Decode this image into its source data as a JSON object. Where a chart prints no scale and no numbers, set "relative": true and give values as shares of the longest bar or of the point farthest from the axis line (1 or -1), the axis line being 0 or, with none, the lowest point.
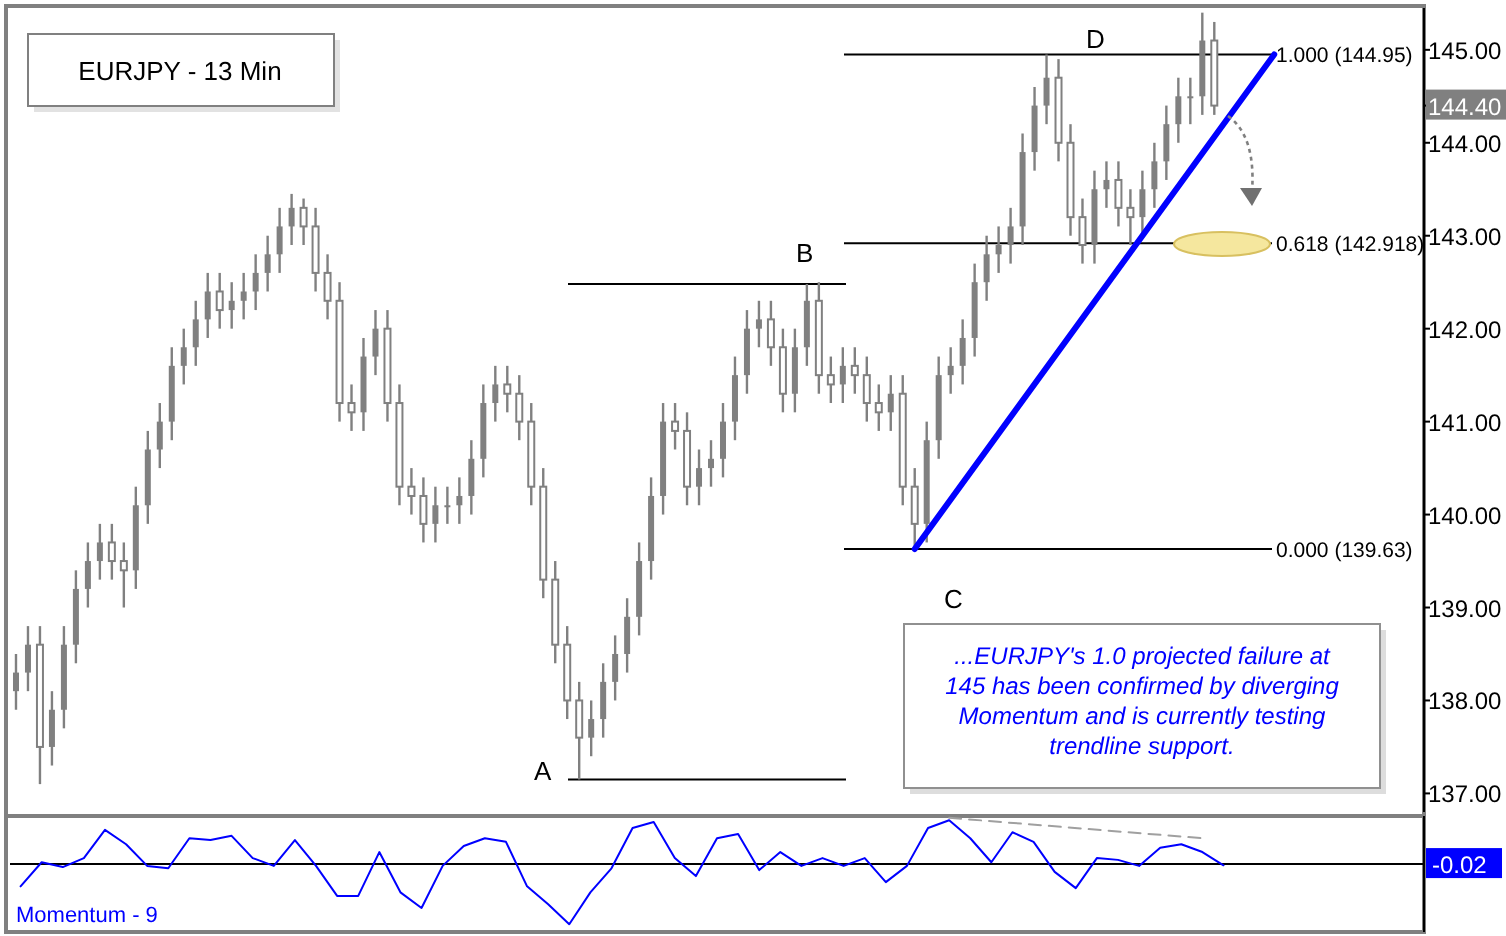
{
  "chart_data": [
    {
      "type": "candlestick",
      "title": "EURJPY - 13 Min",
      "tick_labels": "y",
      "categories": [
        null,
        null,
        null,
        null,
        null,
        null,
        null,
        null,
        null,
        null,
        null,
        null,
        null,
        null,
        null,
        null,
        null,
        null,
        null,
        null,
        null,
        null,
        null,
        null,
        null,
        null,
        null,
        null,
        null,
        null,
        null,
        null,
        null,
        null,
        null,
        null,
        null,
        null,
        null,
        null,
        null,
        null,
        null,
        null,
        null,
        null,
        null,
        null,
        null,
        null,
        null,
        null,
        null,
        null,
        null,
        null,
        null,
        null,
        null,
        null,
        null,
        null,
        null,
        null,
        null,
        null,
        null,
        null,
        null,
        null,
        null,
        null,
        null,
        null,
        null,
        null,
        null,
        null,
        null,
        null,
        null,
        null,
        null,
        null,
        null,
        null,
        null,
        null,
        null,
        null,
        null,
        null,
        null,
        null,
        null,
        null,
        null,
        null,
        null,
        null,
        null,
        null,
        null,
        null,
        null,
        null,
        null,
        null,
        null,
        null,
        null,
        null,
        null,
        null,
        null,
        null,
        null,
        null
      ],
      "ylim": [
        136.8,
        145.45
      ],
      "yticks": [
        {
          "value": 137,
          "label": "137.00"
        },
        {
          "value": 138,
          "label": "138.00"
        },
        {
          "value": 139,
          "label": "139.00"
        },
        {
          "value": 140,
          "label": "140.00"
        },
        {
          "value": 141,
          "label": "141.00"
        },
        {
          "value": 142,
          "label": "142.00"
        },
        {
          "value": 143,
          "label": "143.00"
        },
        {
          "value": 144,
          "label": "144.00"
        },
        {
          "value": 144.4,
          "label": "144.40"
        },
        {
          "value": 145,
          "label": "145.00"
        }
      ],
      "series": [
        {
          "type": "candlestick",
          "color": "#808080",
          "ohlc": [
            [
              138.1,
              138.5,
              137.9,
              138.3
            ],
            [
              138.3,
              138.8,
              138.1,
              138.6
            ],
            [
              138.6,
              138.8,
              137.1,
              137.5
            ],
            [
              137.5,
              138.1,
              137.3,
              137.9
            ],
            [
              137.9,
              138.8,
              137.7,
              138.6
            ],
            [
              138.6,
              139.4,
              138.4,
              139.2
            ],
            [
              139.2,
              139.7,
              139.0,
              139.5
            ],
            [
              139.5,
              139.9,
              139.3,
              139.7
            ],
            [
              139.7,
              139.9,
              139.3,
              139.5
            ],
            [
              139.5,
              139.7,
              139.0,
              139.4
            ],
            [
              139.4,
              140.3,
              139.2,
              140.1
            ],
            [
              140.1,
              140.9,
              139.9,
              140.7
            ],
            [
              140.7,
              141.2,
              140.5,
              141.0
            ],
            [
              141.0,
              141.8,
              140.8,
              141.6
            ],
            [
              141.6,
              142.0,
              141.4,
              141.8
            ],
            [
              141.8,
              142.3,
              141.6,
              142.1
            ],
            [
              142.1,
              142.6,
              141.9,
              142.4
            ],
            [
              142.4,
              142.6,
              142.0,
              142.2
            ],
            [
              142.2,
              142.5,
              142.0,
              142.3
            ],
            [
              142.3,
              142.6,
              142.1,
              142.4
            ],
            [
              142.4,
              142.8,
              142.2,
              142.6
            ],
            [
              142.6,
              143.0,
              142.4,
              142.8
            ],
            [
              142.8,
              143.3,
              142.6,
              143.1
            ],
            [
              143.1,
              143.45,
              142.9,
              143.3
            ],
            [
              143.3,
              143.4,
              142.9,
              143.1
            ],
            [
              143.1,
              143.3,
              142.4,
              142.6
            ],
            [
              142.6,
              142.8,
              142.1,
              142.3
            ],
            [
              142.3,
              142.5,
              141.0,
              141.2
            ],
            [
              141.2,
              141.4,
              140.9,
              141.1
            ],
            [
              141.1,
              141.9,
              140.9,
              141.7
            ],
            [
              141.7,
              142.2,
              141.5,
              142.0
            ],
            [
              142.0,
              142.2,
              141.0,
              141.2
            ],
            [
              141.2,
              141.4,
              140.1,
              140.3
            ],
            [
              140.3,
              140.5,
              140.0,
              140.2
            ],
            [
              140.2,
              140.4,
              139.7,
              139.9
            ],
            [
              139.9,
              140.3,
              139.7,
              140.1
            ],
            [
              140.1,
              140.3,
              139.9,
              140.1
            ],
            [
              140.1,
              140.4,
              139.9,
              140.2
            ],
            [
              140.2,
              140.8,
              140.0,
              140.6
            ],
            [
              140.6,
              141.4,
              140.4,
              141.2
            ],
            [
              141.2,
              141.6,
              141.0,
              141.4
            ],
            [
              141.4,
              141.6,
              141.1,
              141.3
            ],
            [
              141.3,
              141.5,
              140.8,
              141.0
            ],
            [
              141.0,
              141.2,
              140.1,
              140.3
            ],
            [
              140.3,
              140.5,
              139.1,
              139.3
            ],
            [
              139.3,
              139.5,
              138.4,
              138.6
            ],
            [
              138.6,
              138.8,
              137.8,
              138.0
            ],
            [
              138.0,
              138.2,
              137.15,
              137.6
            ],
            [
              137.6,
              138.0,
              137.4,
              137.8
            ],
            [
              137.8,
              138.4,
              137.6,
              138.2
            ],
            [
              138.2,
              138.7,
              138.0,
              138.5
            ],
            [
              138.5,
              139.1,
              138.3,
              138.9
            ],
            [
              138.9,
              139.7,
              138.7,
              139.5
            ],
            [
              139.5,
              140.4,
              139.3,
              140.2
            ],
            [
              140.2,
              141.2,
              140.0,
              141.0
            ],
            [
              141.0,
              141.2,
              140.7,
              140.9
            ],
            [
              140.9,
              141.1,
              140.1,
              140.3
            ],
            [
              140.3,
              140.7,
              140.1,
              140.5
            ],
            [
              140.5,
              140.8,
              140.3,
              140.6
            ],
            [
              140.6,
              141.2,
              140.4,
              141.0
            ],
            [
              141.0,
              141.7,
              140.8,
              141.5
            ],
            [
              141.5,
              142.2,
              141.3,
              142.0
            ],
            [
              142.0,
              142.3,
              141.8,
              142.1
            ],
            [
              142.1,
              142.3,
              141.6,
              141.8
            ],
            [
              141.8,
              142.0,
              141.1,
              141.3
            ],
            [
              141.3,
              142.0,
              141.1,
              141.8
            ],
            [
              141.8,
              142.48,
              141.6,
              142.3
            ],
            [
              142.3,
              142.5,
              141.3,
              141.5
            ],
            [
              141.5,
              141.7,
              141.2,
              141.4
            ],
            [
              141.4,
              141.8,
              141.2,
              141.6
            ],
            [
              141.6,
              141.8,
              141.3,
              141.5
            ],
            [
              141.5,
              141.7,
              141.0,
              141.2
            ],
            [
              141.2,
              141.4,
              140.9,
              141.1
            ],
            [
              141.1,
              141.5,
              140.9,
              141.3
            ],
            [
              141.3,
              141.5,
              140.1,
              140.3
            ],
            [
              140.3,
              140.5,
              139.63,
              139.9
            ],
            [
              139.9,
              141.0,
              139.7,
              140.8
            ],
            [
              140.8,
              141.7,
              140.6,
              141.5
            ],
            [
              141.5,
              141.8,
              141.3,
              141.6
            ],
            [
              141.6,
              142.1,
              141.4,
              141.9
            ],
            [
              141.9,
              142.7,
              141.7,
              142.5
            ],
            [
              142.5,
              143.0,
              142.3,
              142.8
            ],
            [
              142.8,
              143.1,
              142.6,
              142.9
            ],
            [
              142.9,
              143.3,
              142.7,
              143.1
            ],
            [
              143.1,
              144.1,
              142.9,
              143.9
            ],
            [
              143.9,
              144.6,
              143.7,
              144.4
            ],
            [
              144.4,
              144.95,
              144.2,
              144.7
            ],
            [
              144.7,
              144.9,
              143.8,
              144.0
            ],
            [
              144.0,
              144.2,
              143.0,
              143.2
            ],
            [
              143.2,
              143.4,
              142.7,
              142.9
            ],
            [
              142.9,
              143.7,
              142.7,
              143.5
            ],
            [
              143.5,
              143.8,
              143.3,
              143.6
            ],
            [
              143.6,
              143.8,
              143.1,
              143.3
            ],
            [
              143.3,
              143.5,
              142.9,
              143.2
            ],
            [
              143.2,
              143.7,
              143.0,
              143.5
            ],
            [
              143.5,
              144.0,
              143.3,
              143.8
            ],
            [
              143.8,
              144.4,
              143.6,
              144.2
            ],
            [
              144.2,
              144.7,
              144.0,
              144.5
            ],
            [
              144.5,
              144.7,
              144.2,
              144.5
            ],
            [
              144.5,
              145.4,
              144.3,
              145.1
            ],
            [
              145.1,
              145.3,
              144.3,
              144.4
            ],
            null,
            null,
            null,
            null,
            null,
            null,
            null,
            null,
            null,
            null,
            null,
            null,
            null,
            null,
            null,
            null,
            null
          ]
        },
        {
          "type": "line",
          "color": "#0000ff",
          "values": [
            null,
            null,
            null,
            null,
            null,
            null,
            null,
            null,
            null,
            null,
            null,
            null,
            null,
            null,
            null,
            null,
            null,
            null,
            null,
            null,
            null,
            null,
            null,
            null,
            null,
            null,
            null,
            null,
            null,
            null,
            null,
            null,
            null,
            null,
            null,
            null,
            null,
            null,
            null,
            null,
            null,
            null,
            null,
            null,
            null,
            null,
            null,
            null,
            null,
            null,
            null,
            null,
            null,
            null,
            null,
            null,
            null,
            null,
            null,
            null,
            null,
            null,
            null,
            null,
            null,
            null,
            null,
            null,
            null,
            null,
            null,
            null,
            null,
            null,
            null,
            139.63,
            null,
            null,
            null,
            null,
            null,
            null,
            null,
            null,
            null,
            null,
            null,
            null,
            null,
            null,
            null,
            null,
            null,
            null,
            null,
            null,
            null,
            null,
            null,
            null,
            null,
            null,
            null,
            null,
            null,
            144.95,
            null,
            null,
            null,
            null,
            null,
            null,
            null,
            null,
            null,
            null,
            null,
            null
          ]
        }
      ],
      "ref_lines": [
        {
          "axis": "y",
          "value": 137.15,
          "label": null,
          "color": "#000000"
        },
        {
          "axis": "y",
          "value": 142.48,
          "label": null,
          "color": "#000000"
        },
        {
          "axis": "y",
          "value": 139.63,
          "label": "0.000 (139.63)",
          "color": "#000000"
        },
        {
          "axis": "y",
          "value": 142.918,
          "label": "0.618 (142.918)",
          "color": "#000000"
        },
        {
          "axis": "y",
          "value": 144.95,
          "label": "1.000 (144.95)",
          "color": "#000000"
        }
      ],
      "annotations": [
        "A",
        "B",
        "C",
        "D",
        "...EURJPY's 1.0 projected failure at 145 has been confirmed by diverging Momentum and is currently testing trendline support."
      ]
    },
    {
      "type": "line",
      "title": "Momentum - 9",
      "relative": true,
      "tick_labels": false,
      "annotations": [
        "-0.02"
      ],
      "categories": [
        null,
        null,
        null,
        null,
        null,
        null,
        null,
        null,
        null,
        null,
        null,
        null,
        null,
        null,
        null,
        null,
        null,
        null,
        null,
        null,
        null,
        null,
        null,
        null,
        null,
        null,
        null,
        null,
        null,
        null,
        null,
        null,
        null,
        null,
        null,
        null,
        null,
        null,
        null,
        null,
        null,
        null,
        null,
        null,
        null,
        null,
        null,
        null,
        null,
        null,
        null,
        null,
        null,
        null,
        null,
        null,
        null,
        null,
        null,
        null,
        null,
        null,
        null,
        null,
        null,
        null,
        null
      ],
      "series": [
        {
          "color": "#0000ff",
          "values": [
            -0.37,
            0.03,
            -0.05,
            0.1,
            0.57,
            0.33,
            -0.03,
            -0.07,
            0.43,
            0.4,
            0.47,
            0.1,
            -0.03,
            0.4,
            -0.03,
            -0.53,
            -0.53,
            0.2,
            -0.47,
            -0.73,
            -0.03,
            0.3,
            0.43,
            0.37,
            -0.37,
            -0.67,
            -1,
            -0.47,
            -0.07,
            0.6,
            0.7,
            0.1,
            -0.2,
            0.43,
            0.5,
            -0.1,
            0.2,
            -0.03,
            0.1,
            -0.03,
            0.1,
            -0.3,
            -0.03,
            0.6,
            0.73,
            0.43,
            0.03,
            0.53,
            0.37,
            -0.13,
            -0.4,
            0.1,
            0.07,
            -0.03,
            0.27,
            0.33,
            0.2,
            -0.02,
            null,
            null,
            null,
            null,
            null,
            null,
            null,
            null,
            null
          ]
        },
        {
          "color": "#a0a0a0",
          "line_style": "dashed",
          "values": [
            null,
            null,
            null,
            null,
            null,
            null,
            null,
            null,
            null,
            null,
            null,
            null,
            null,
            null,
            null,
            null,
            null,
            null,
            null,
            null,
            null,
            null,
            null,
            null,
            null,
            null,
            null,
            null,
            null,
            null,
            null,
            null,
            null,
            null,
            null,
            null,
            null,
            null,
            null,
            null,
            null,
            null,
            null,
            null,
            0.77,
            null,
            null,
            null,
            null,
            null,
            null,
            null,
            null,
            null,
            null,
            null,
            0.43,
            null,
            null,
            null,
            null,
            null,
            null,
            null,
            null,
            null,
            null
          ]
        }
      ]
    }
  ]
}
